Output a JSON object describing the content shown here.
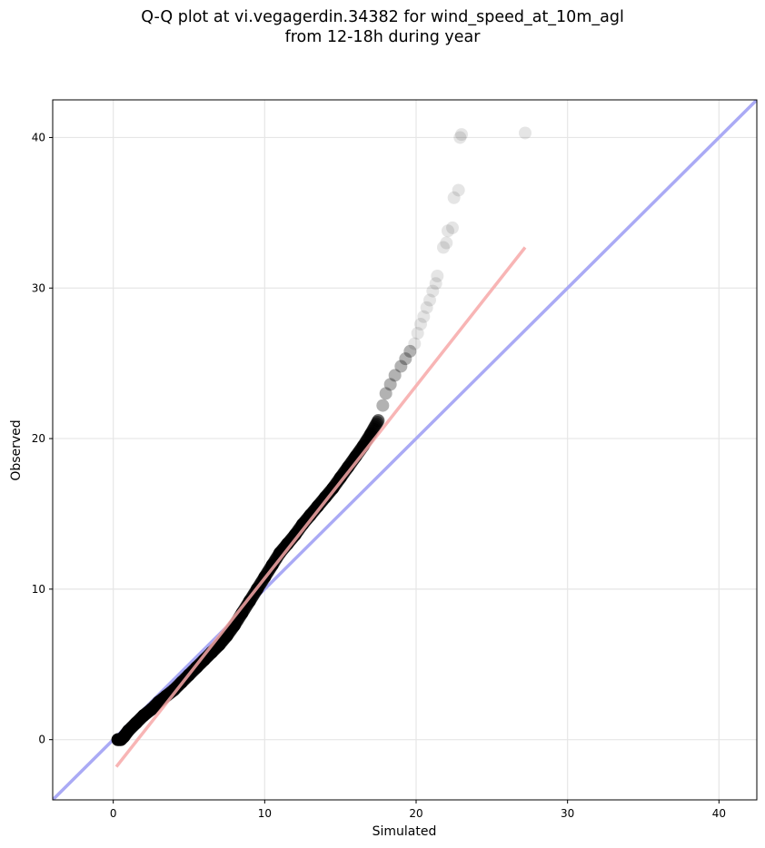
{
  "chart_data": {
    "type": "scatter",
    "title_line1": "Q-Q plot at vi.vegagerdin.34382 for wind_speed_at_10m_agl",
    "title_line2": "from 12-18h during year",
    "xlabel": "Simulated",
    "ylabel": "Observed",
    "xlim": [
      -4,
      42.5
    ],
    "ylim": [
      -4,
      42.5
    ],
    "xticks": [
      0,
      10,
      20,
      30,
      40
    ],
    "yticks": [
      0,
      10,
      20,
      30,
      40
    ],
    "grid": true,
    "identity_line": {
      "color": "#aaaaf5",
      "from": [
        -4,
        -4
      ],
      "to": [
        42.5,
        42.5
      ]
    },
    "fit_line": {
      "color": "#f7a8a8",
      "from": [
        0.2,
        -1.8
      ],
      "to": [
        27.2,
        32.7
      ]
    },
    "quantiles": [
      [
        0.3,
        0.0
      ],
      [
        0.5,
        0.0
      ],
      [
        0.7,
        0.2
      ],
      [
        1.0,
        0.6
      ],
      [
        1.5,
        1.1
      ],
      [
        2.0,
        1.6
      ],
      [
        2.5,
        2.0
      ],
      [
        3.0,
        2.5
      ],
      [
        3.5,
        2.9
      ],
      [
        4.0,
        3.3
      ],
      [
        4.5,
        3.8
      ],
      [
        5.0,
        4.3
      ],
      [
        5.5,
        4.8
      ],
      [
        6.0,
        5.3
      ],
      [
        6.5,
        5.8
      ],
      [
        7.0,
        6.3
      ],
      [
        7.5,
        6.9
      ],
      [
        8.0,
        7.6
      ],
      [
        8.5,
        8.4
      ],
      [
        9.0,
        9.2
      ],
      [
        9.5,
        10.0
      ],
      [
        10.0,
        10.8
      ],
      [
        10.5,
        11.6
      ],
      [
        11.0,
        12.4
      ],
      [
        11.5,
        13.0
      ],
      [
        12.0,
        13.6
      ],
      [
        12.5,
        14.3
      ],
      [
        13.0,
        14.9
      ],
      [
        13.5,
        15.5
      ],
      [
        14.0,
        16.1
      ],
      [
        14.5,
        16.7
      ],
      [
        15.0,
        17.4
      ],
      [
        15.5,
        18.1
      ],
      [
        16.0,
        18.8
      ],
      [
        16.5,
        19.5
      ],
      [
        17.0,
        20.3
      ],
      [
        17.5,
        21.2
      ],
      [
        17.8,
        22.2
      ],
      [
        18.0,
        23.0
      ],
      [
        18.3,
        23.6
      ],
      [
        18.6,
        24.2
      ],
      [
        19.0,
        24.8
      ],
      [
        19.3,
        25.3
      ],
      [
        19.6,
        25.8
      ],
      [
        19.9,
        26.3
      ],
      [
        20.1,
        27.0
      ],
      [
        20.3,
        27.6
      ],
      [
        20.5,
        28.1
      ],
      [
        20.7,
        28.7
      ],
      [
        20.9,
        29.2
      ],
      [
        21.1,
        29.8
      ],
      [
        21.3,
        30.3
      ],
      [
        21.4,
        30.8
      ],
      [
        21.8,
        32.7
      ],
      [
        22.0,
        33.0
      ],
      [
        22.1,
        33.8
      ],
      [
        22.4,
        34.0
      ],
      [
        22.5,
        36.0
      ],
      [
        22.8,
        36.5
      ],
      [
        22.9,
        40.0
      ],
      [
        23.0,
        40.2
      ],
      [
        27.2,
        40.3
      ]
    ]
  }
}
